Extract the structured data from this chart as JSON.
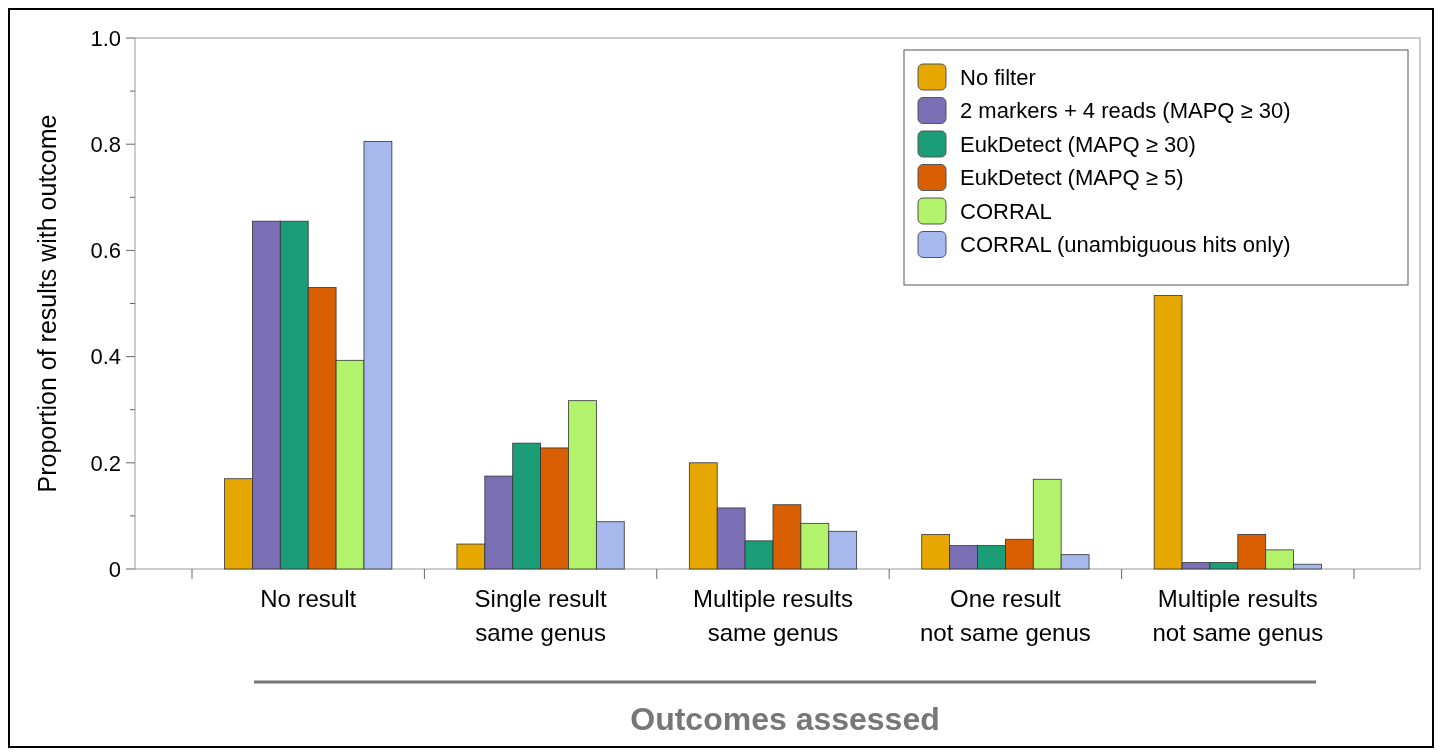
{
  "chart_data": {
    "type": "bar",
    "xlabel": "Outcomes assessed",
    "ylabel": "Proportion of results with outcome",
    "categories": [
      "No result",
      "Single result\nsame genus",
      "Multiple results\nsame genus",
      "One result\nnot same genus",
      "Multiple results\nnot same genus"
    ],
    "series": [
      {
        "name": "No filter",
        "color": "#e6a800",
        "values": [
          0.17,
          0.047,
          0.2,
          0.065,
          0.515
        ]
      },
      {
        "name": "2 markers + 4 reads (MAPQ ≥ 30)",
        "color": "#7a6fb5",
        "values": [
          0.655,
          0.175,
          0.115,
          0.044,
          0.012
        ]
      },
      {
        "name": "EukDetect (MAPQ ≥ 30)",
        "color": "#1b9e77",
        "values": [
          0.655,
          0.237,
          0.053,
          0.044,
          0.012
        ]
      },
      {
        "name": "EukDetect (MAPQ ≥ 5)",
        "color": "#d95f02",
        "values": [
          0.53,
          0.228,
          0.121,
          0.056,
          0.065
        ]
      },
      {
        "name": "CORRAL",
        "color": "#b3f26b",
        "values": [
          0.393,
          0.317,
          0.086,
          0.169,
          0.036
        ]
      },
      {
        "name": "CORRAL (unambiguous hits only)",
        "color": "#a6b8ec",
        "values": [
          0.805,
          0.089,
          0.071,
          0.027,
          0.009
        ]
      }
    ],
    "ylim": [
      0,
      1
    ],
    "yticks": [
      0,
      {
        "value": 0.1,
        "label": null
      },
      {
        "value": 0.2,
        "label": "0.2"
      },
      {
        "value": 0.3,
        "label": null
      },
      {
        "value": 0.4,
        "label": "0.4"
      },
      {
        "value": 0.5,
        "label": null
      },
      {
        "value": 0.6,
        "label": "0.6"
      },
      {
        "value": 0.7,
        "label": null
      },
      {
        "value": 0.8,
        "label": "0.8"
      },
      {
        "value": 0.9,
        "label": null
      },
      {
        "value": 1,
        "label": "1.0"
      }
    ],
    "legend": "top right",
    "grid": false
  }
}
